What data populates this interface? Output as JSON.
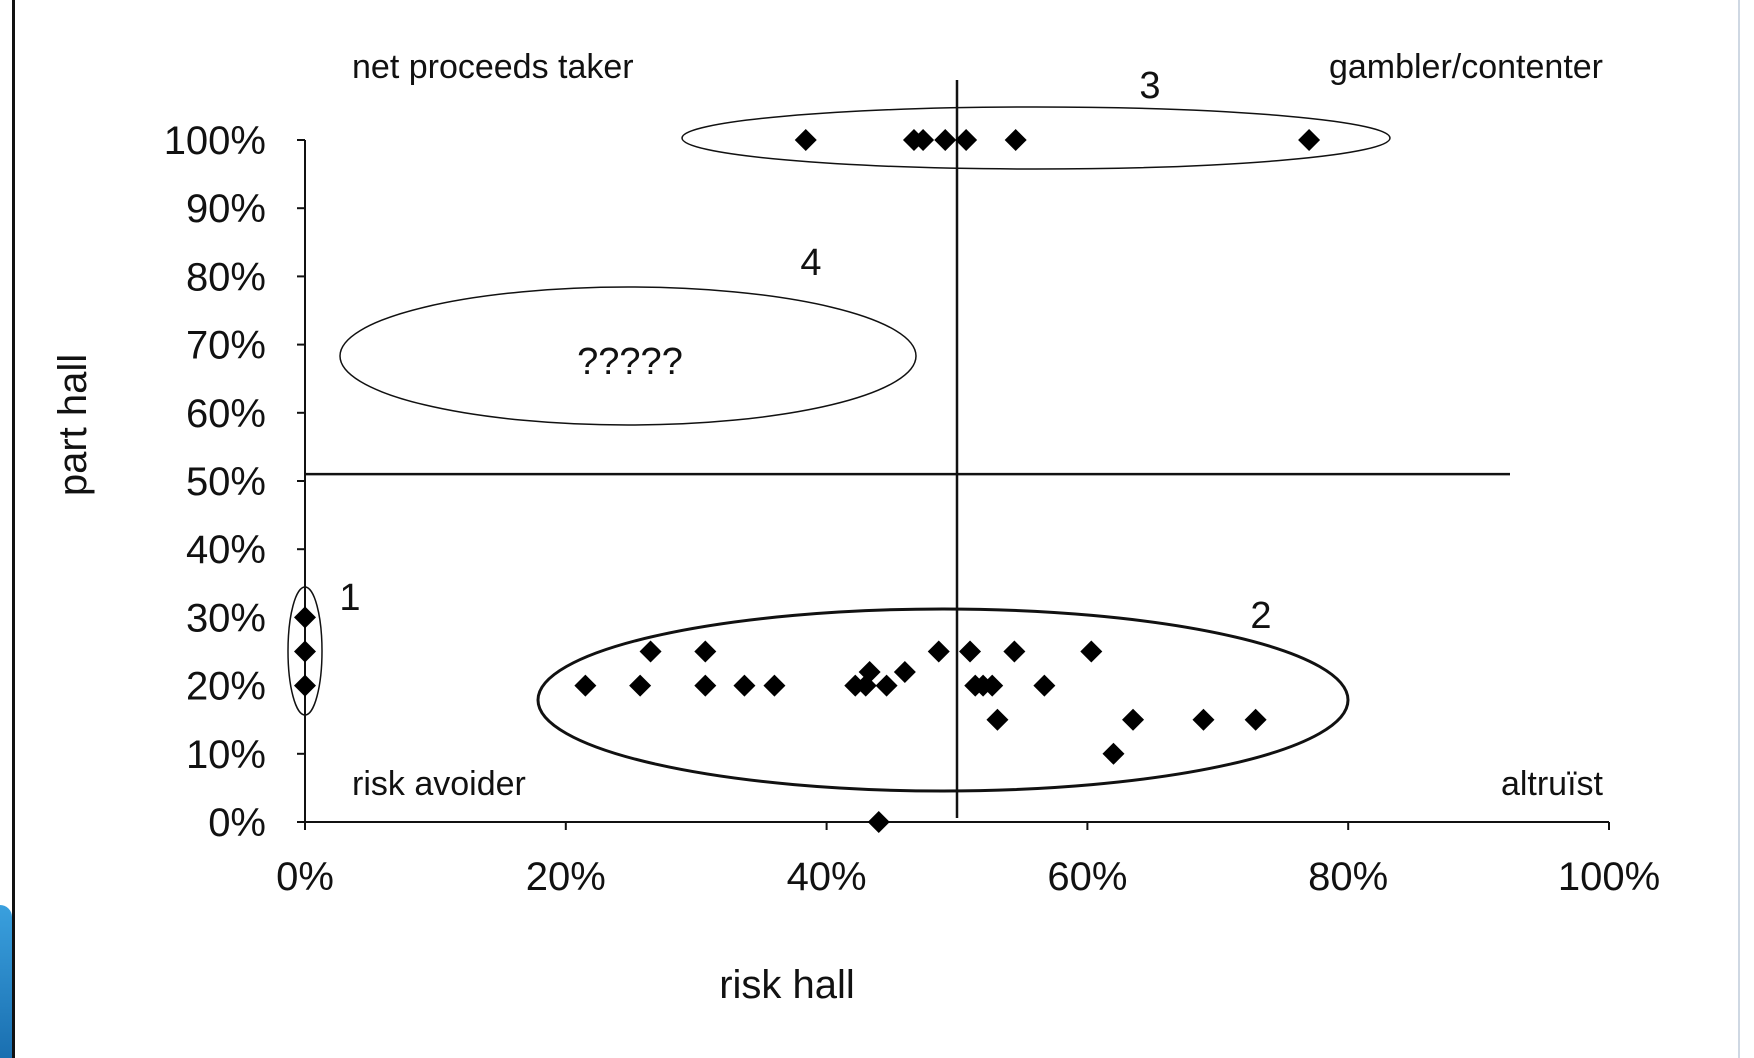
{
  "chart_data": {
    "type": "scatter",
    "xlabel": "risk hall",
    "ylabel": "part hall",
    "xlim": [
      0,
      100
    ],
    "ylim": [
      0,
      100
    ],
    "x_ticks": [
      "0%",
      "20%",
      "40%",
      "60%",
      "80%",
      "100%"
    ],
    "y_ticks": [
      "0%",
      "10%",
      "20%",
      "30%",
      "40%",
      "50%",
      "60%",
      "70%",
      "80%",
      "90%",
      "100%"
    ],
    "reference_lines": {
      "x": 50,
      "y": 51
    },
    "quadrant_labels": {
      "top_left": "net proceeds taker",
      "top_right": "gambler/contenter",
      "bottom_left": "risk avoider",
      "bottom_right": "altruïst"
    },
    "groups": [
      {
        "label": "1"
      },
      {
        "label": "2"
      },
      {
        "label": "3"
      },
      {
        "label": "4",
        "text": "?????"
      }
    ],
    "points": [
      {
        "x": 0,
        "y": 30
      },
      {
        "x": 0,
        "y": 25
      },
      {
        "x": 0,
        "y": 20
      },
      {
        "x": 21.5,
        "y": 20
      },
      {
        "x": 25.7,
        "y": 20
      },
      {
        "x": 26.5,
        "y": 25
      },
      {
        "x": 30.7,
        "y": 25
      },
      {
        "x": 30.7,
        "y": 20
      },
      {
        "x": 33.7,
        "y": 20
      },
      {
        "x": 36,
        "y": 20
      },
      {
        "x": 42.2,
        "y": 20
      },
      {
        "x": 43,
        "y": 20
      },
      {
        "x": 43.3,
        "y": 22
      },
      {
        "x": 44.6,
        "y": 20
      },
      {
        "x": 46,
        "y": 22
      },
      {
        "x": 48.6,
        "y": 25
      },
      {
        "x": 51,
        "y": 25
      },
      {
        "x": 51.4,
        "y": 20
      },
      {
        "x": 52,
        "y": 20
      },
      {
        "x": 52.7,
        "y": 20
      },
      {
        "x": 53.1,
        "y": 15
      },
      {
        "x": 54.4,
        "y": 25
      },
      {
        "x": 56.7,
        "y": 20
      },
      {
        "x": 60.3,
        "y": 25
      },
      {
        "x": 62,
        "y": 10
      },
      {
        "x": 63.5,
        "y": 15
      },
      {
        "x": 68.9,
        "y": 15
      },
      {
        "x": 72.9,
        "y": 15
      },
      {
        "x": 44,
        "y": 0
      },
      {
        "x": 38.4,
        "y": 100
      },
      {
        "x": 46.7,
        "y": 100
      },
      {
        "x": 47.4,
        "y": 100
      },
      {
        "x": 49.1,
        "y": 100
      },
      {
        "x": 50.7,
        "y": 100
      },
      {
        "x": 54.5,
        "y": 100
      },
      {
        "x": 77,
        "y": 100
      }
    ]
  }
}
